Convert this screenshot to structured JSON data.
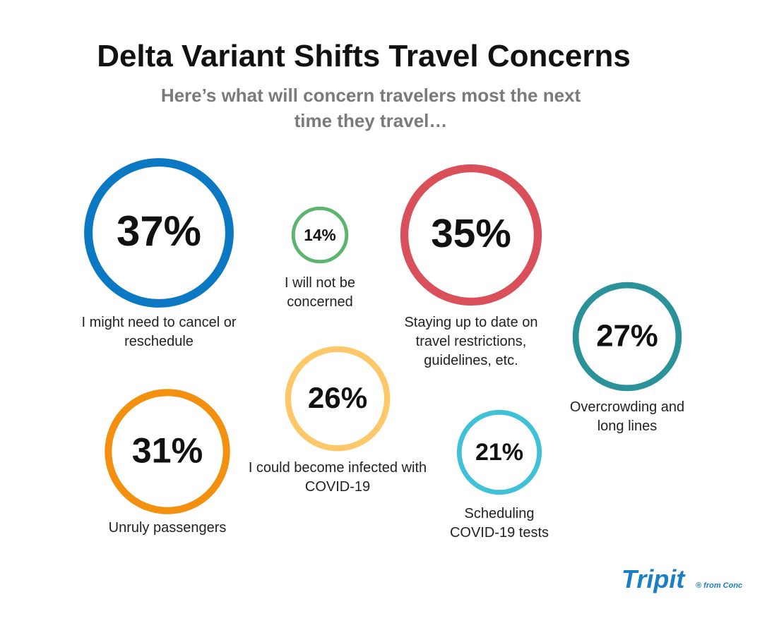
{
  "chart_data": {
    "type": "bubble",
    "title": "Delta Variant Shifts Travel Concerns",
    "subtitle": "Here’s what will concern travelers most the next time they travel…",
    "categories": [
      "I might need to cancel or reschedule",
      "I will not be concerned",
      "Staying up to date on travel restrictions, guidelines, etc.",
      "Overcrowding and long lines",
      "Unruly passengers",
      "I could become infected with COVID-19",
      "Scheduling COVID-19 tests"
    ],
    "values": [
      37,
      14,
      35,
      27,
      31,
      26,
      21
    ],
    "value_labels": [
      "37%",
      "14%",
      "35%",
      "27%",
      "31%",
      "26%",
      "21%"
    ],
    "colors": [
      "#0a78c2",
      "#5cb46e",
      "#d9505a",
      "#2a9298",
      "#f4900f",
      "#fcc86a",
      "#3fc1d8"
    ]
  },
  "logo": {
    "name": "Tripit",
    "tagline": "® from Conc"
  }
}
